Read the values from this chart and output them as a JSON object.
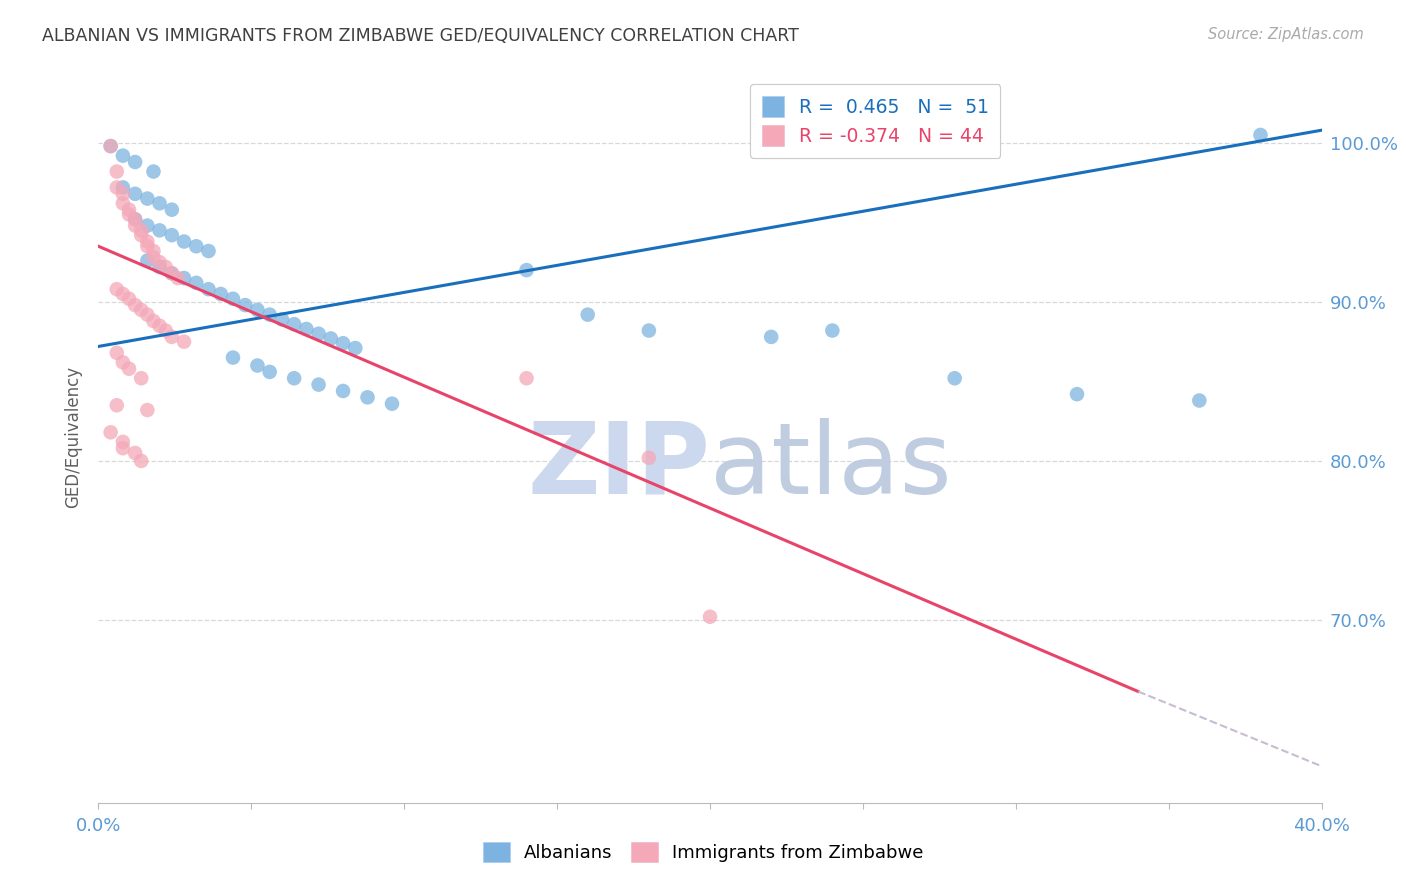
{
  "title": "ALBANIAN VS IMMIGRANTS FROM ZIMBABWE GED/EQUIVALENCY CORRELATION CHART",
  "source": "Source: ZipAtlas.com",
  "ylabel": "GED/Equivalency",
  "ytick_labels": [
    "100.0%",
    "90.0%",
    "80.0%",
    "70.0%"
  ],
  "ytick_values": [
    1.0,
    0.9,
    0.8,
    0.7
  ],
  "xmin": 0.0,
  "xmax": 0.4,
  "ymin": 0.585,
  "ymax": 1.045,
  "legend_blue_label": "R =  0.465   N =  51",
  "legend_pink_label": "R = -0.374   N = 44",
  "legend_bottom_blue": "Albanians",
  "legend_bottom_pink": "Immigrants from Zimbabwe",
  "blue_color": "#7db3e0",
  "pink_color": "#f4a8b8",
  "blue_line_color": "#1a6fbd",
  "pink_line_color": "#e8446a",
  "dashed_line_color": "#c8bcd0",
  "watermark_zip_color": "#ccd8ee",
  "watermark_atlas_color": "#c0cce0",
  "title_color": "#404040",
  "axis_color": "#5b9bd5",
  "grid_color": "#d8d8d8",
  "blue_scatter": [
    [
      0.004,
      0.998
    ],
    [
      0.008,
      0.992
    ],
    [
      0.012,
      0.988
    ],
    [
      0.018,
      0.982
    ],
    [
      0.008,
      0.972
    ],
    [
      0.012,
      0.968
    ],
    [
      0.016,
      0.965
    ],
    [
      0.02,
      0.962
    ],
    [
      0.024,
      0.958
    ],
    [
      0.012,
      0.952
    ],
    [
      0.016,
      0.948
    ],
    [
      0.02,
      0.945
    ],
    [
      0.024,
      0.942
    ],
    [
      0.028,
      0.938
    ],
    [
      0.032,
      0.935
    ],
    [
      0.036,
      0.932
    ],
    [
      0.016,
      0.926
    ],
    [
      0.02,
      0.922
    ],
    [
      0.024,
      0.918
    ],
    [
      0.028,
      0.915
    ],
    [
      0.032,
      0.912
    ],
    [
      0.036,
      0.908
    ],
    [
      0.04,
      0.905
    ],
    [
      0.044,
      0.902
    ],
    [
      0.048,
      0.898
    ],
    [
      0.052,
      0.895
    ],
    [
      0.056,
      0.892
    ],
    [
      0.06,
      0.889
    ],
    [
      0.064,
      0.886
    ],
    [
      0.068,
      0.883
    ],
    [
      0.072,
      0.88
    ],
    [
      0.076,
      0.877
    ],
    [
      0.08,
      0.874
    ],
    [
      0.084,
      0.871
    ],
    [
      0.044,
      0.865
    ],
    [
      0.052,
      0.86
    ],
    [
      0.056,
      0.856
    ],
    [
      0.064,
      0.852
    ],
    [
      0.072,
      0.848
    ],
    [
      0.08,
      0.844
    ],
    [
      0.088,
      0.84
    ],
    [
      0.096,
      0.836
    ],
    [
      0.14,
      0.92
    ],
    [
      0.16,
      0.892
    ],
    [
      0.18,
      0.882
    ],
    [
      0.22,
      0.878
    ],
    [
      0.24,
      0.882
    ],
    [
      0.28,
      0.852
    ],
    [
      0.32,
      0.842
    ],
    [
      0.36,
      0.838
    ],
    [
      0.38,
      1.005
    ]
  ],
  "pink_scatter": [
    [
      0.004,
      0.998
    ],
    [
      0.006,
      0.982
    ],
    [
      0.006,
      0.972
    ],
    [
      0.008,
      0.968
    ],
    [
      0.008,
      0.962
    ],
    [
      0.01,
      0.958
    ],
    [
      0.01,
      0.955
    ],
    [
      0.012,
      0.952
    ],
    [
      0.012,
      0.948
    ],
    [
      0.014,
      0.945
    ],
    [
      0.014,
      0.942
    ],
    [
      0.016,
      0.938
    ],
    [
      0.016,
      0.935
    ],
    [
      0.018,
      0.932
    ],
    [
      0.018,
      0.928
    ],
    [
      0.02,
      0.925
    ],
    [
      0.022,
      0.922
    ],
    [
      0.024,
      0.918
    ],
    [
      0.026,
      0.915
    ],
    [
      0.006,
      0.908
    ],
    [
      0.008,
      0.905
    ],
    [
      0.01,
      0.902
    ],
    [
      0.012,
      0.898
    ],
    [
      0.014,
      0.895
    ],
    [
      0.016,
      0.892
    ],
    [
      0.018,
      0.888
    ],
    [
      0.02,
      0.885
    ],
    [
      0.022,
      0.882
    ],
    [
      0.024,
      0.878
    ],
    [
      0.028,
      0.875
    ],
    [
      0.006,
      0.868
    ],
    [
      0.008,
      0.862
    ],
    [
      0.01,
      0.858
    ],
    [
      0.014,
      0.852
    ],
    [
      0.006,
      0.835
    ],
    [
      0.016,
      0.832
    ],
    [
      0.004,
      0.818
    ],
    [
      0.008,
      0.812
    ],
    [
      0.008,
      0.808
    ],
    [
      0.012,
      0.805
    ],
    [
      0.014,
      0.8
    ],
    [
      0.14,
      0.852
    ],
    [
      0.18,
      0.802
    ],
    [
      0.2,
      0.702
    ]
  ],
  "blue_line_x": [
    0.0,
    0.4
  ],
  "blue_line_y": [
    0.872,
    1.008
  ],
  "pink_line_x": [
    0.0,
    0.34
  ],
  "pink_line_y": [
    0.935,
    0.655
  ],
  "dashed_line_x": [
    0.34,
    0.4
  ],
  "dashed_line_y": [
    0.655,
    0.608
  ]
}
